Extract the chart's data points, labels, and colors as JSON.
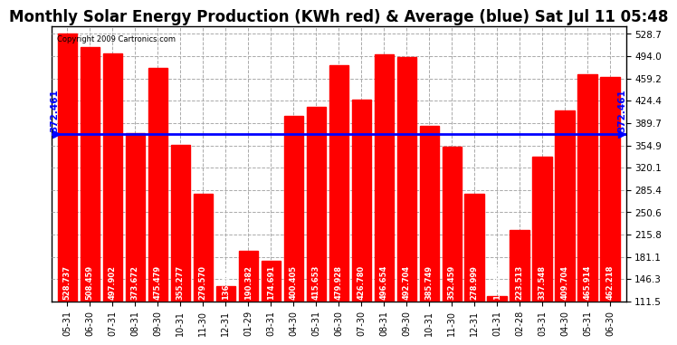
{
  "title": "Monthly Solar Energy Production (KWh red) & Average (blue) Sat Jul 11 05:48",
  "copyright": "Copyright 2009 Cartronics.com",
  "categories": [
    "05-31",
    "06-30",
    "07-31",
    "08-31",
    "09-30",
    "10-31",
    "11-30",
    "12-31",
    "01-29",
    "03-31",
    "04-30",
    "05-31",
    "06-30",
    "07-30",
    "08-31",
    "09-30",
    "10-31",
    "11-30",
    "12-31",
    "01-31",
    "02-28",
    "03-31",
    "04-30",
    "05-31",
    "06-30"
  ],
  "values": [
    528.737,
    508.459,
    497.902,
    373.672,
    475.479,
    355.277,
    279.57,
    136.061,
    190.382,
    174.691,
    400.405,
    415.653,
    479.928,
    426.78,
    496.654,
    492.704,
    385.749,
    352.459,
    278.999,
    119.696,
    223.513,
    337.548,
    409.704,
    465.914,
    462.218
  ],
  "average": 372.461,
  "bar_color": "#ff0000",
  "avg_line_color": "#0000ff",
  "background_color": "#ffffff",
  "plot_bg_color": "#ffffff",
  "ylim_min": 111.5,
  "ylim_max": 540.0,
  "yticks": [
    111.5,
    146.3,
    181.1,
    215.8,
    250.6,
    285.4,
    320.1,
    354.9,
    389.7,
    424.4,
    459.2,
    494.0,
    528.7
  ],
  "grid_color": "#aaaaaa",
  "title_fontsize": 12,
  "bar_value_fontsize": 6.0,
  "avg_label": "372.461",
  "avg_label_fontsize": 7.5
}
